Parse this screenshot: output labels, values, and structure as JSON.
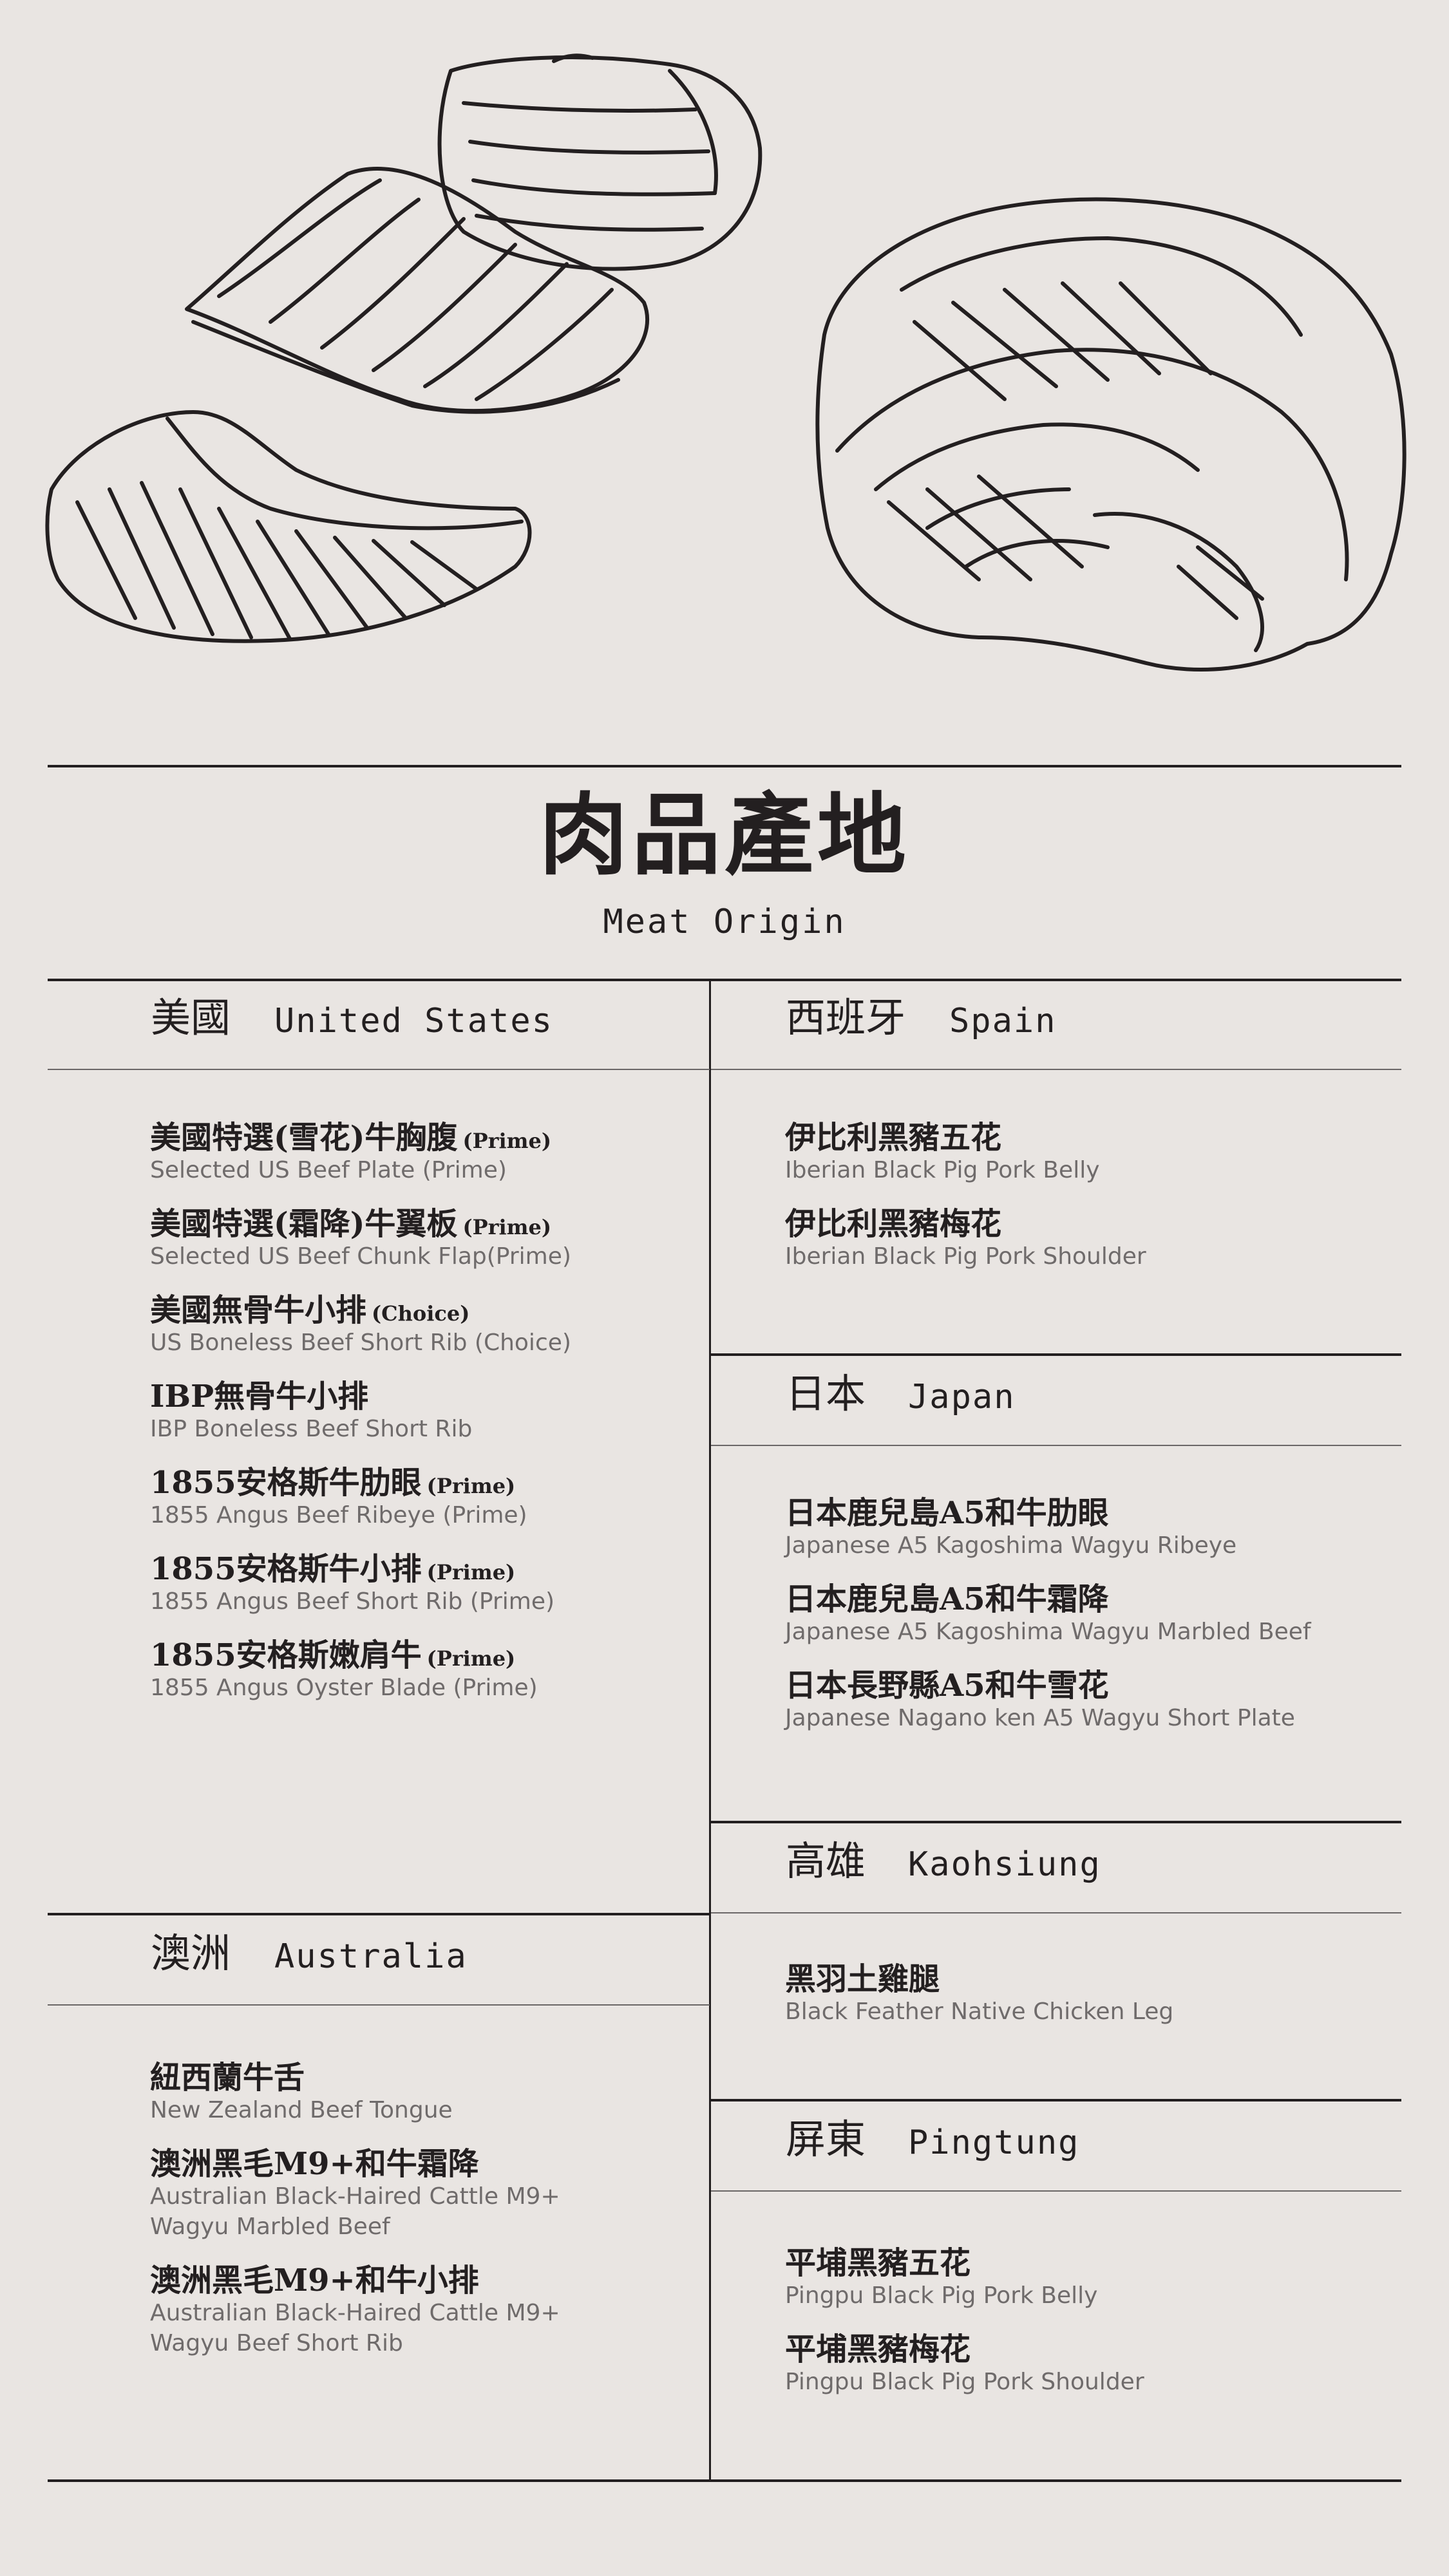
{
  "title": {
    "cn": "肉品產地",
    "en": "Meat Origin"
  },
  "sections": {
    "us": {
      "cn": "美國",
      "en": "United States",
      "items": [
        {
          "cn": "美國特選(雪花)牛胸腹",
          "tag": "(Prime)",
          "en": "Selected US Beef Plate (Prime)"
        },
        {
          "cn": "美國特選(霜降)牛翼板",
          "tag": "(Prime)",
          "en": "Selected US Beef Chunk Flap(Prime)"
        },
        {
          "cn": "美國無骨牛小排",
          "tag": "(Choice)",
          "en": "US Boneless Beef Short Rib (Choice)"
        },
        {
          "cn": "IBP無骨牛小排",
          "tag": "",
          "en": "IBP Boneless Beef Short Rib"
        },
        {
          "cn": "1855安格斯牛肋眼",
          "tag": "(Prime)",
          "en": "1855 Angus Beef Ribeye (Prime)"
        },
        {
          "cn": "1855安格斯牛小排",
          "tag": "(Prime)",
          "en": "1855 Angus Beef Short Rib (Prime)"
        },
        {
          "cn": "1855安格斯嫩肩牛",
          "tag": "(Prime)",
          "en": "1855 Angus Oyster Blade (Prime)"
        }
      ]
    },
    "australia": {
      "cn": "澳洲",
      "en": "Australia",
      "items": [
        {
          "cn": "紐西蘭牛舌",
          "tag": "",
          "en": "New Zealand Beef Tongue"
        },
        {
          "cn": "澳洲黑毛M9+和牛霜降",
          "tag": "",
          "en": "Australian Black-Haired Cattle M9+\nWagyu Marbled Beef"
        },
        {
          "cn": "澳洲黑毛M9+和牛小排",
          "tag": "",
          "en": "Australian Black-Haired Cattle M9+\nWagyu Beef Short Rib"
        }
      ]
    },
    "spain": {
      "cn": "西班牙",
      "en": "Spain",
      "items": [
        {
          "cn": "伊比利黑豬五花",
          "tag": "",
          "en": "Iberian Black Pig Pork Belly"
        },
        {
          "cn": "伊比利黑豬梅花",
          "tag": "",
          "en": "Iberian Black Pig Pork Shoulder"
        }
      ]
    },
    "japan": {
      "cn": "日本",
      "en": "Japan",
      "items": [
        {
          "cn": "日本鹿兒島A5和牛肋眼",
          "tag": "",
          "en": "Japanese A5 Kagoshima Wagyu Ribeye"
        },
        {
          "cn": "日本鹿兒島A5和牛霜降",
          "tag": "",
          "en": "Japanese A5 Kagoshima Wagyu Marbled Beef"
        },
        {
          "cn": "日本長野縣A5和牛雪花",
          "tag": "",
          "en": "Japanese Nagano ken A5 Wagyu Short Plate"
        }
      ]
    },
    "kaohsiung": {
      "cn": "高雄",
      "en": "Kaohsiung",
      "items": [
        {
          "cn": "黑羽土雞腿",
          "tag": "",
          "en": "Black Feather Native Chicken Leg"
        }
      ]
    },
    "pingtung": {
      "cn": "屏東",
      "en": "Pingtung",
      "items": [
        {
          "cn": "平埔黑豬五花",
          "tag": "",
          "en": "Pingpu Black Pig Pork Belly"
        },
        {
          "cn": "平埔黑豬梅花",
          "tag": "",
          "en": "Pingpu Black Pig Pork Shoulder"
        }
      ]
    }
  }
}
